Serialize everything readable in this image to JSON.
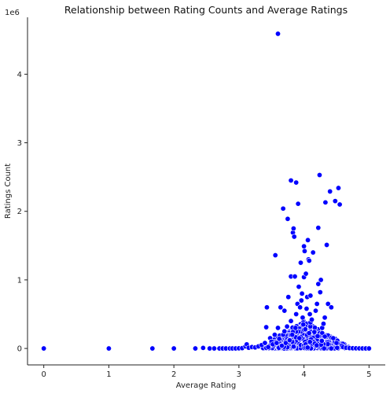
{
  "chart_data": {
    "type": "scatter",
    "title": "Relationship between Rating Counts and Average Ratings",
    "xlabel": "Average Rating",
    "ylabel": "Ratings Count",
    "xlim": [
      -0.25,
      5.25
    ],
    "ylim": [
      -240000,
      4830000
    ],
    "x_ticks": [
      0,
      1,
      2,
      3,
      4,
      5
    ],
    "y_ticks": [
      0,
      1000000,
      2000000,
      3000000,
      4000000
    ],
    "x_tick_labels": [
      "0",
      "1",
      "2",
      "3",
      "4",
      "5"
    ],
    "y_tick_labels": [
      "0",
      "1",
      "2",
      "3",
      "4"
    ],
    "y_offset_label": "1e6",
    "grid": false,
    "marker_color": "#0000ff",
    "marker_edge_color": "#ffffff",
    "points": [
      [
        0,
        0
      ],
      [
        1,
        0
      ],
      [
        1.67,
        0
      ],
      [
        2,
        0
      ],
      [
        2.33,
        0
      ],
      [
        2.45,
        8000
      ],
      [
        2.55,
        0
      ],
      [
        2.62,
        0
      ],
      [
        2.7,
        0
      ],
      [
        2.75,
        0
      ],
      [
        2.8,
        0
      ],
      [
        2.86,
        0
      ],
      [
        2.9,
        0
      ],
      [
        2.95,
        0
      ],
      [
        3.0,
        2000
      ],
      [
        3.05,
        5000
      ],
      [
        3.1,
        30000
      ],
      [
        3.12,
        60000
      ],
      [
        3.15,
        10000
      ],
      [
        3.2,
        20000
      ],
      [
        3.25,
        15000
      ],
      [
        3.3,
        30000
      ],
      [
        3.35,
        50000
      ],
      [
        3.4,
        80000
      ],
      [
        3.42,
        310000
      ],
      [
        3.43,
        600000
      ],
      [
        3.45,
        20000
      ],
      [
        3.48,
        150000
      ],
      [
        3.5,
        100000
      ],
      [
        3.52,
        60000
      ],
      [
        3.55,
        200000
      ],
      [
        3.56,
        1360000
      ],
      [
        3.58,
        80000
      ],
      [
        3.6,
        4590000
      ],
      [
        3.6,
        300000
      ],
      [
        3.62,
        140000
      ],
      [
        3.64,
        600000
      ],
      [
        3.66,
        40000
      ],
      [
        3.68,
        2040000
      ],
      [
        3.68,
        200000
      ],
      [
        3.7,
        550000
      ],
      [
        3.7,
        250000
      ],
      [
        3.72,
        80000
      ],
      [
        3.74,
        320000
      ],
      [
        3.75,
        1890000
      ],
      [
        3.76,
        750000
      ],
      [
        3.78,
        120000
      ],
      [
        3.8,
        2450000
      ],
      [
        3.8,
        1050000
      ],
      [
        3.8,
        400000
      ],
      [
        3.82,
        200000
      ],
      [
        3.83,
        1690000
      ],
      [
        3.84,
        1750000
      ],
      [
        3.85,
        1630000
      ],
      [
        3.86,
        1050000
      ],
      [
        3.87,
        300000
      ],
      [
        3.88,
        2420000
      ],
      [
        3.88,
        500000
      ],
      [
        3.9,
        650000
      ],
      [
        3.91,
        2110000
      ],
      [
        3.92,
        900000
      ],
      [
        3.93,
        150000
      ],
      [
        3.94,
        600000
      ],
      [
        3.95,
        1250000
      ],
      [
        3.96,
        700000
      ],
      [
        3.97,
        800000
      ],
      [
        3.98,
        450000
      ],
      [
        3.99,
        350000
      ],
      [
        4.0,
        1490000
      ],
      [
        4.0,
        1040000
      ],
      [
        4.01,
        1420000
      ],
      [
        4.02,
        280000
      ],
      [
        4.03,
        1090000
      ],
      [
        4.04,
        580000
      ],
      [
        4.05,
        750000
      ],
      [
        4.06,
        1580000
      ],
      [
        4.07,
        1300000
      ],
      [
        4.08,
        1280000
      ],
      [
        4.09,
        500000
      ],
      [
        4.1,
        770000
      ],
      [
        4.1,
        380000
      ],
      [
        4.12,
        420000
      ],
      [
        4.14,
        1400000
      ],
      [
        4.16,
        240000
      ],
      [
        4.18,
        550000
      ],
      [
        4.2,
        650000
      ],
      [
        4.22,
        1760000
      ],
      [
        4.22,
        940000
      ],
      [
        4.24,
        2530000
      ],
      [
        4.25,
        820000
      ],
      [
        4.26,
        1000000
      ],
      [
        4.28,
        300000
      ],
      [
        4.3,
        360000
      ],
      [
        4.32,
        450000
      ],
      [
        4.33,
        2130000
      ],
      [
        4.35,
        1510000
      ],
      [
        4.37,
        650000
      ],
      [
        4.4,
        2290000
      ],
      [
        4.42,
        600000
      ],
      [
        4.45,
        150000
      ],
      [
        4.48,
        2150000
      ],
      [
        4.5,
        80000
      ],
      [
        4.53,
        2340000
      ],
      [
        4.55,
        2100000
      ],
      [
        4.6,
        20000
      ],
      [
        4.65,
        10000
      ],
      [
        4.7,
        5000
      ],
      [
        4.75,
        3000
      ],
      [
        4.8,
        2000
      ],
      [
        4.85,
        1000
      ],
      [
        4.9,
        500
      ],
      [
        4.95,
        0
      ],
      [
        5.0,
        0
      ]
    ],
    "dense_region": {
      "x_range": [
        3.3,
        4.8
      ],
      "center_x": 4.0,
      "approx_point_count": 700,
      "y_range": [
        0,
        400000
      ]
    }
  }
}
